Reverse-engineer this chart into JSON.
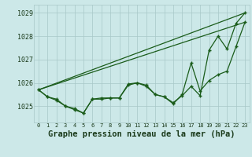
{
  "bg_color": "#cce8e8",
  "grid_color": "#a8c8c8",
  "line_color": "#1a5c1a",
  "marker_color": "#1a5c1a",
  "xlabel": "Graphe pression niveau de la mer (hPa)",
  "xlabel_fontsize": 7.5,
  "xlim": [
    -0.5,
    23.5
  ],
  "ylim": [
    1024.3,
    1029.35
  ],
  "yticks": [
    1025,
    1026,
    1027,
    1028,
    1029
  ],
  "xticks": [
    0,
    1,
    2,
    3,
    4,
    5,
    6,
    7,
    8,
    9,
    10,
    11,
    12,
    13,
    14,
    15,
    16,
    17,
    18,
    19,
    20,
    21,
    22,
    23
  ],
  "line1_x": [
    0,
    1,
    2,
    3,
    4,
    5,
    6,
    7,
    8,
    9,
    10,
    11,
    12,
    13,
    14,
    15,
    16,
    17,
    18,
    19,
    20,
    21,
    22,
    23
  ],
  "line1_y": [
    1025.7,
    1025.4,
    1025.3,
    1025.0,
    1024.85,
    1024.7,
    1025.3,
    1025.3,
    1025.35,
    1025.35,
    1025.9,
    1026.0,
    1025.9,
    1025.5,
    1025.4,
    1025.1,
    1025.5,
    1026.85,
    1025.65,
    1026.1,
    1026.35,
    1026.5,
    1027.55,
    1028.6
  ],
  "line2_x": [
    0,
    1,
    2,
    3,
    4,
    5,
    6,
    7,
    8,
    9,
    10,
    11,
    12,
    13,
    14,
    15,
    16,
    17,
    18,
    19,
    20,
    21,
    22,
    23
  ],
  "line2_y": [
    1025.7,
    1025.4,
    1025.25,
    1025.0,
    1024.9,
    1024.7,
    1025.3,
    1025.35,
    1025.35,
    1025.35,
    1025.95,
    1026.0,
    1025.85,
    1025.5,
    1025.4,
    1025.15,
    1025.45,
    1025.85,
    1025.45,
    1027.4,
    1028.0,
    1027.45,
    1028.55,
    1029.0
  ],
  "line3_x": [
    0,
    23
  ],
  "line3_y": [
    1025.7,
    1029.0
  ],
  "line4_x": [
    0,
    23
  ],
  "line4_y": [
    1025.7,
    1028.6
  ]
}
